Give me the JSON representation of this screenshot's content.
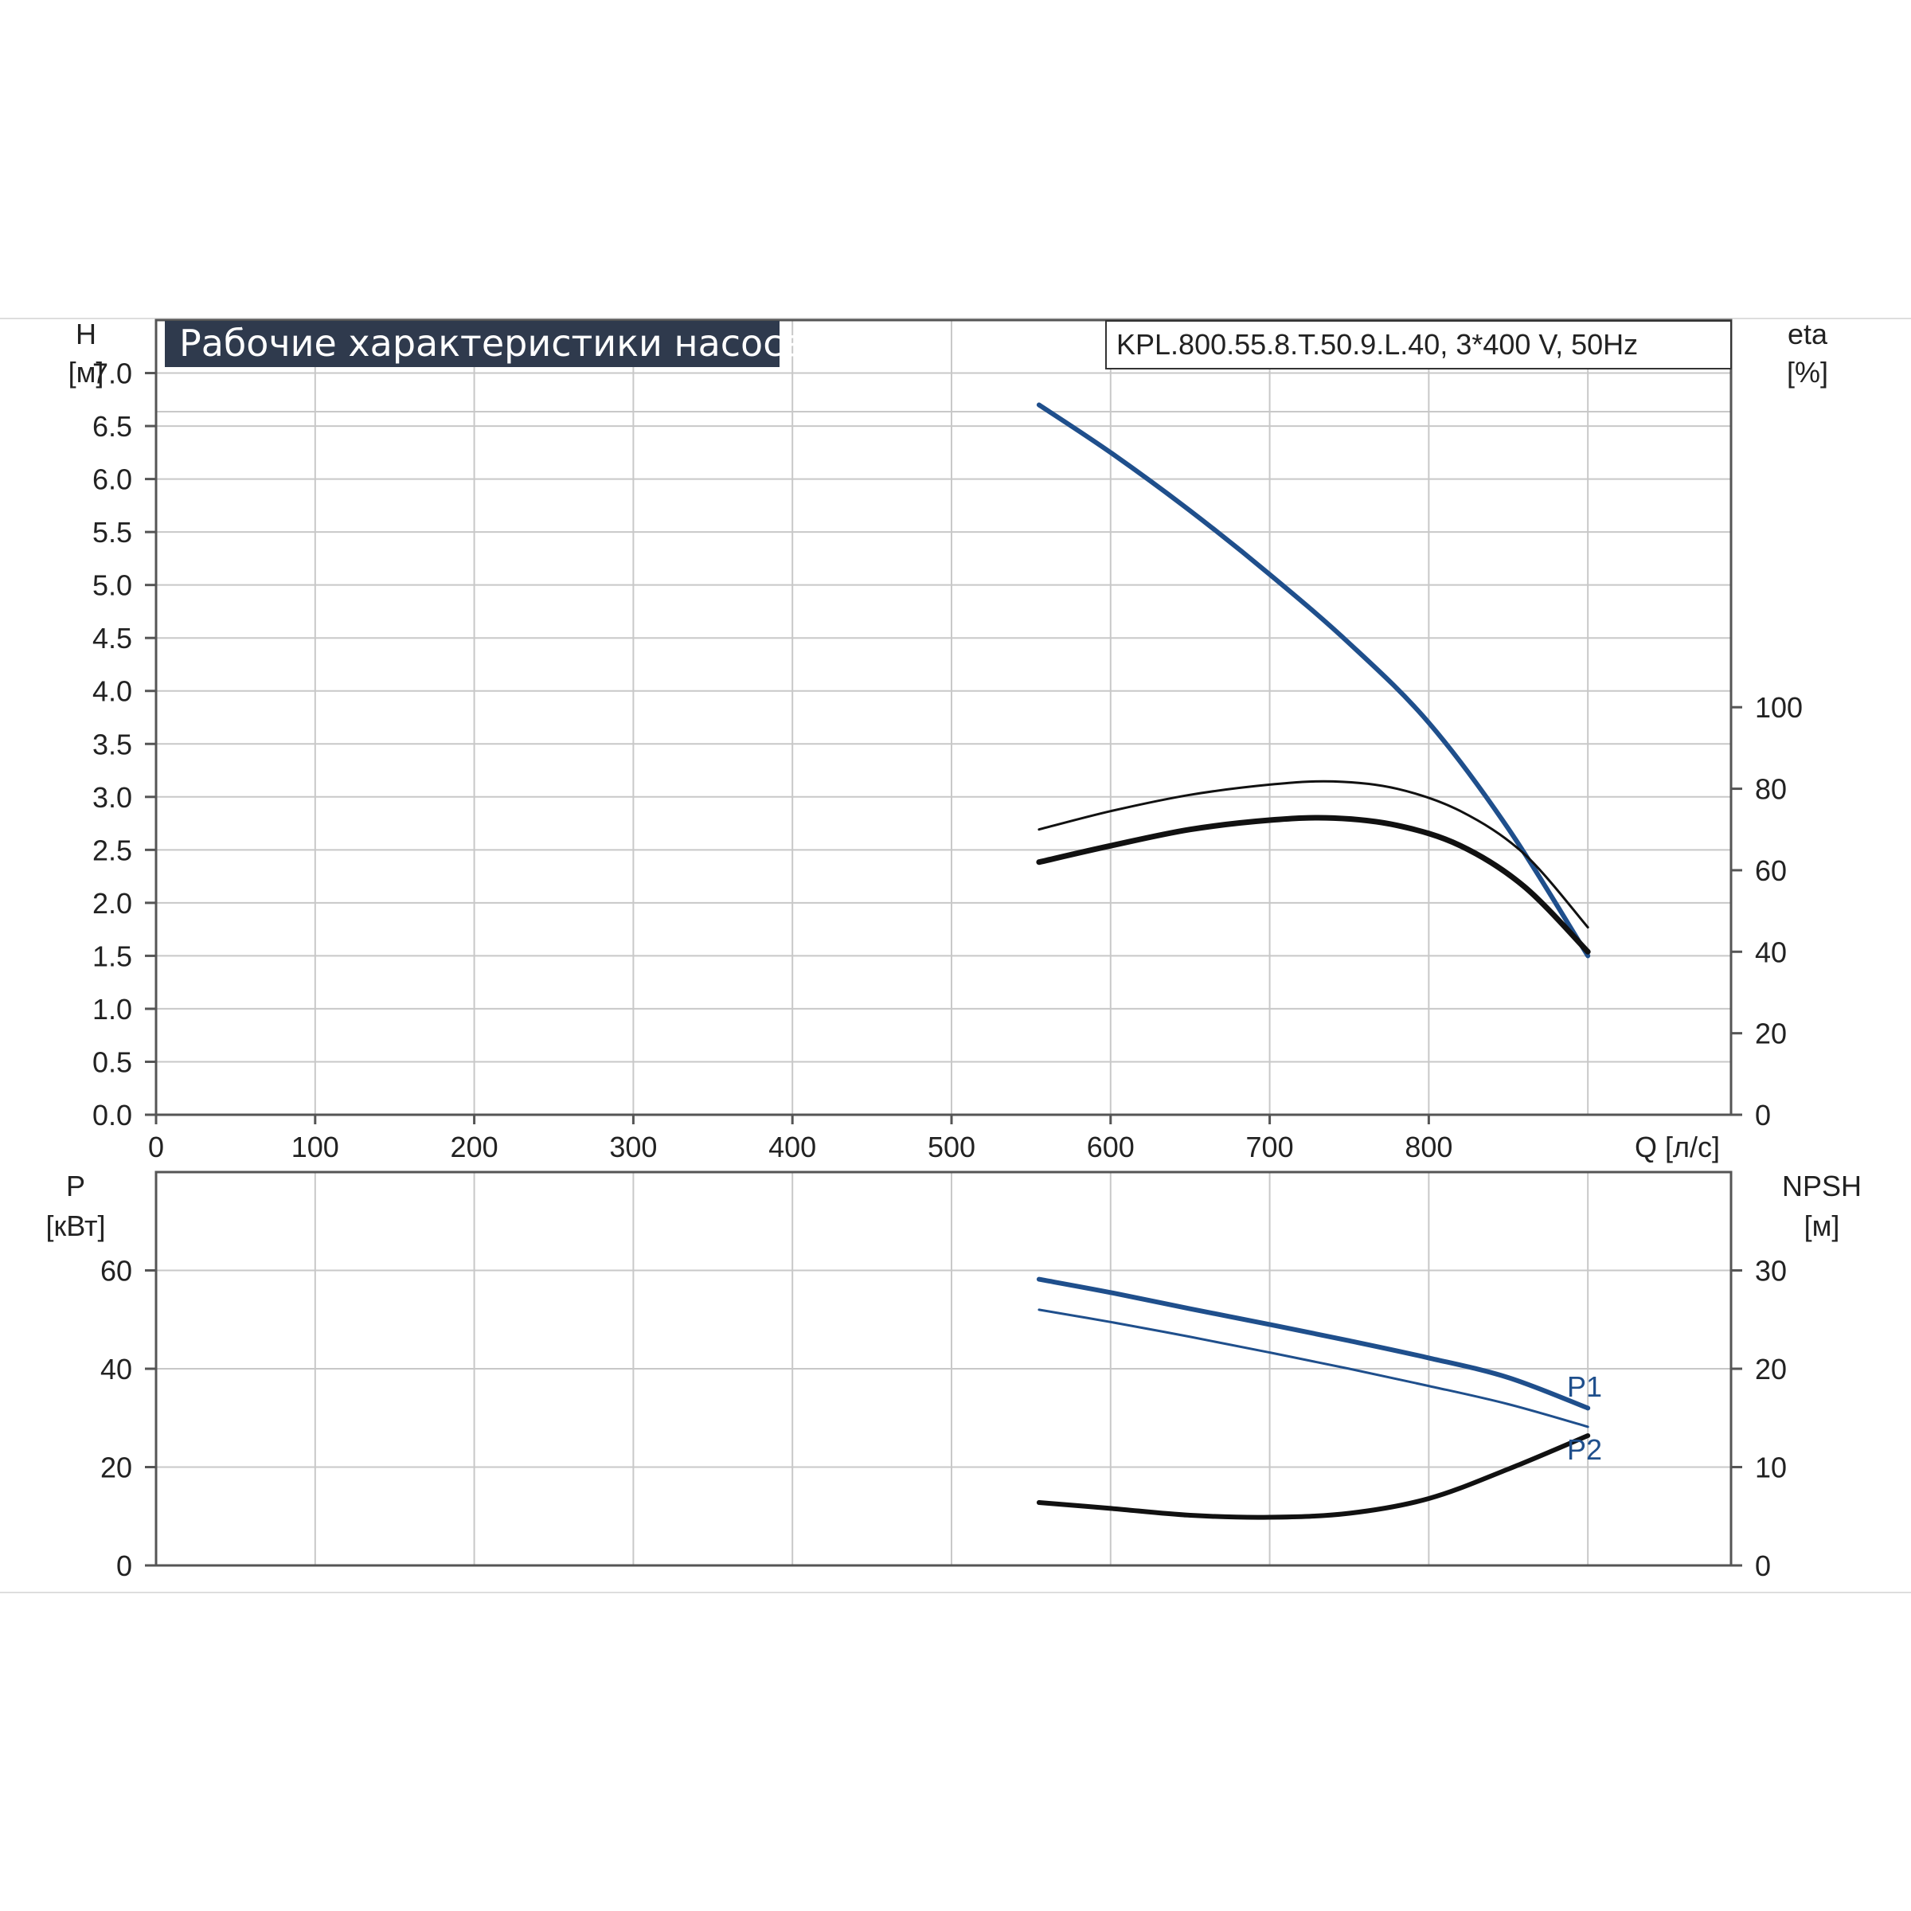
{
  "colors": {
    "blue": "#1f4f8c",
    "black": "#111111",
    "title_bg": "#2f3a4d",
    "grid": "#c8c8c8"
  },
  "title": "Рабочие характеристики насоса",
  "model": "KPL.800.55.8.T.50.9.L.40, 3*400 V, 50Hz",
  "chart_data": [
    {
      "type": "line",
      "xlabel": "Q [л/с]",
      "x_ticks": [
        "0",
        "100",
        "200",
        "300",
        "400",
        "500",
        "600",
        "700",
        "800"
      ],
      "xlim": [
        0,
        990
      ],
      "left_axis": {
        "label": "H",
        "unit": "[м]",
        "ylim": [
          0,
          7.5
        ],
        "ticks": [
          "0.0",
          "0.5",
          "1.0",
          "1.5",
          "2.0",
          "2.5",
          "3.0",
          "3.5",
          "4.0",
          "4.5",
          "5.0",
          "5.5",
          "6.0",
          "6.5",
          "7.0"
        ]
      },
      "right_axis": {
        "label": "eta",
        "unit": "[%]",
        "ylim": [
          0,
          195
        ],
        "ticks": [
          "0",
          "20",
          "40",
          "60",
          "80",
          "100"
        ]
      },
      "series": [
        {
          "axis": "left",
          "color": "#1f4f8c",
          "width": 6,
          "x": [
            555,
            600,
            650,
            700,
            750,
            800,
            850,
            900
          ],
          "y": [
            6.7,
            6.25,
            5.7,
            5.1,
            4.45,
            3.7,
            2.7,
            1.5
          ]
        },
        {
          "axis": "right",
          "color": "#111111",
          "width": 3,
          "x": [
            555,
            600,
            650,
            700,
            740,
            780,
            820,
            860,
            900
          ],
          "y": [
            70,
            74.5,
            78.5,
            81,
            81.8,
            80,
            74.5,
            64,
            46
          ]
        },
        {
          "axis": "right",
          "color": "#111111",
          "width": 7,
          "x": [
            555,
            600,
            650,
            700,
            740,
            780,
            820,
            860,
            900
          ],
          "y": [
            62,
            66,
            70,
            72.3,
            72.8,
            71,
            66,
            56,
            40
          ]
        }
      ]
    },
    {
      "type": "line",
      "x_ticks": [
        "0",
        "100",
        "200",
        "300",
        "400",
        "500",
        "600",
        "700",
        "800"
      ],
      "xlim": [
        0,
        990
      ],
      "left_axis": {
        "label": "P",
        "unit": "[кВт]",
        "ylim": [
          0,
          80
        ],
        "ticks": [
          "0",
          "20",
          "40",
          "60"
        ]
      },
      "right_axis": {
        "label": "NPSH",
        "unit": "[м]",
        "ylim": [
          0,
          40
        ],
        "ticks": [
          "0",
          "10",
          "20",
          "30"
        ]
      },
      "annotations": [
        "P1",
        "P2"
      ],
      "series": [
        {
          "name": "P1",
          "axis": "left",
          "color": "#1f4f8c",
          "width": 6,
          "x": [
            555,
            600,
            650,
            700,
            750,
            800,
            850,
            900
          ],
          "y": [
            58.2,
            55.5,
            52.2,
            49,
            45.7,
            42.2,
            38.2,
            32
          ]
        },
        {
          "name": "P2",
          "axis": "left",
          "color": "#1f4f8c",
          "width": 3,
          "x": [
            555,
            600,
            650,
            700,
            750,
            800,
            850,
            900
          ],
          "y": [
            52,
            49.5,
            46.5,
            43.3,
            40,
            36.5,
            32.8,
            28.2
          ]
        },
        {
          "axis": "right",
          "color": "#111111",
          "width": 6,
          "x": [
            555,
            600,
            650,
            700,
            750,
            800,
            850,
            900
          ],
          "y": [
            6.4,
            5.8,
            5.1,
            4.9,
            5.3,
            6.8,
            9.8,
            13.2
          ]
        }
      ]
    }
  ]
}
